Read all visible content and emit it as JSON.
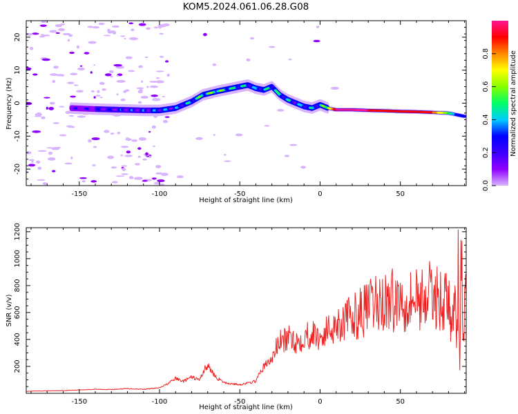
{
  "title": "KOM5.2024.061.06.28.G08",
  "colors": {
    "snr_line": "#ee2222",
    "background": "#ffffff",
    "colormap": [
      "#d8b4fe",
      "#8f00ff",
      "#3c00ff",
      "#0000ff",
      "#00ccff",
      "#00ff66",
      "#88ff00",
      "#ffff00",
      "#ff8800",
      "#ff0000",
      "#ff1493"
    ]
  },
  "chart_data": [
    {
      "type": "heatmap",
      "xlabel": "Height of straight line (km)",
      "ylabel": "Frequency (Hz)",
      "xlim": [
        -183,
        91
      ],
      "ylim": [
        -25,
        25
      ],
      "xticks": [
        -150,
        -100,
        -50,
        0,
        50
      ],
      "yticks": [
        -20,
        -10,
        0,
        10,
        20
      ],
      "colorbar": {
        "label": "Normalized spectral amplitude",
        "range": [
          0,
          1
        ],
        "ticks": [
          "0.0",
          "0.2",
          "0.4",
          "0.6",
          "0.8"
        ]
      },
      "ridge": {
        "x": [
          -155,
          -140,
          -125,
          -110,
          -100,
          -90,
          -80,
          -73,
          -65,
          -55,
          -45,
          -40,
          -35,
          -30,
          -25,
          -20,
          -15,
          -10,
          -5,
          0,
          5,
          10,
          20,
          30,
          40,
          50,
          60,
          70,
          80,
          85,
          90
        ],
        "y": [
          -1.5,
          -1.8,
          -2.0,
          -2.2,
          -2.2,
          -1.5,
          0.5,
          2.5,
          3.5,
          4.5,
          5.5,
          4.5,
          4.0,
          5.0,
          2.5,
          1.0,
          0.0,
          -1.0,
          -1.5,
          -0.5,
          -1.5,
          -2.0,
          -2.0,
          -2.2,
          -2.3,
          -2.5,
          -2.6,
          -2.8,
          -3.0,
          -3.5,
          -4.0
        ],
        "amplitude": [
          0.12,
          0.15,
          0.2,
          0.22,
          0.28,
          0.25,
          0.35,
          0.45,
          0.5,
          0.4,
          0.35,
          0.3,
          0.35,
          0.4,
          0.38,
          0.32,
          0.28,
          0.3,
          0.32,
          0.35,
          0.6,
          0.95,
          0.98,
          0.95,
          0.92,
          0.9,
          0.88,
          0.85,
          0.55,
          0.3,
          0.25
        ]
      }
    },
    {
      "type": "line",
      "xlabel": "Height of straight line (km)",
      "ylabel": "SNR (v/v)",
      "xlim": [
        -183,
        91
      ],
      "ylim": [
        0,
        1230
      ],
      "xticks": [
        -150,
        -100,
        -50,
        0,
        50
      ],
      "yticks": [
        200,
        400,
        600,
        800,
        1000,
        1200
      ],
      "series": [
        {
          "x": [
            -183,
            -170,
            -160,
            -150,
            -140,
            -130,
            -120,
            -110,
            -100,
            -95,
            -90,
            -85,
            -80,
            -75,
            -72,
            -70,
            -67,
            -65,
            -60,
            -55,
            -50,
            -45,
            -40,
            -37,
            -35,
            -33,
            -30,
            -27,
            -25,
            -20,
            -17,
            -15,
            -12,
            -10,
            -5,
            0,
            5,
            10,
            15,
            20,
            25,
            30,
            35,
            40,
            45,
            50,
            55,
            60,
            65,
            70,
            75,
            80,
            82,
            84,
            85,
            86,
            87,
            88,
            89,
            90,
            91
          ],
          "y": [
            15,
            18,
            20,
            25,
            30,
            28,
            35,
            30,
            40,
            70,
            110,
            90,
            120,
            100,
            180,
            200,
            160,
            120,
            80,
            70,
            65,
            75,
            90,
            160,
            200,
            220,
            250,
            350,
            380,
            400,
            420,
            380,
            400,
            430,
            440,
            410,
            470,
            520,
            540,
            560,
            600,
            630,
            660,
            680,
            690,
            700,
            705,
            710,
            720,
            730,
            700,
            680,
            450,
            750,
            300,
            900,
            200,
            1200,
            400,
            600,
            700
          ]
        }
      ]
    }
  ]
}
